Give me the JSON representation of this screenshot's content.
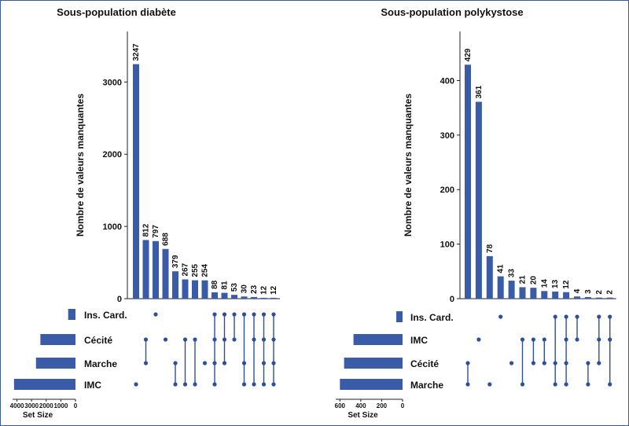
{
  "colors": {
    "bar": "#3a5ca8",
    "dot": "#2f4f9a",
    "axis": "#222222"
  },
  "chart_data": [
    {
      "type": "bar",
      "subtype": "upset",
      "title": "Sous-population diabète",
      "ylabel": "Nombre de valeurs manquantes",
      "ylim": [
        0,
        3700
      ],
      "yticks": [
        0,
        1000,
        2000,
        3000
      ],
      "ytick_labels": [
        "0",
        "1000",
        "2000",
        "3000"
      ],
      "values": [
        3247,
        812,
        797,
        688,
        379,
        267,
        255,
        254,
        88,
        81,
        53,
        30,
        23,
        12,
        12
      ],
      "value_labels": [
        "3247",
        "812",
        "797",
        "688",
        "379",
        "267",
        "255",
        "254",
        "88",
        "81",
        "53",
        "30",
        "23",
        "12",
        "12"
      ],
      "sets": [
        "Ins. Card.",
        "Cécité",
        "Marche",
        "IMC"
      ],
      "set_sizes": [
        500,
        2400,
        2700,
        4200
      ],
      "set_size_label": "Set Size",
      "set_size_max": 4300,
      "set_size_ticks": [
        4000,
        3000,
        2000,
        1000,
        0
      ],
      "set_size_tick_labels": [
        "4000",
        "3000",
        "2000",
        "1000",
        "0"
      ],
      "combinations": [
        [
          3
        ],
        [
          1,
          2
        ],
        [
          0
        ],
        [
          1
        ],
        [
          2,
          3
        ],
        [
          1,
          3
        ],
        [
          1,
          3
        ],
        [
          2
        ],
        [
          0,
          1,
          2,
          3
        ],
        [
          0,
          1,
          2
        ],
        [
          0,
          1
        ],
        [
          0,
          2,
          3
        ],
        [
          0,
          1,
          3
        ],
        [
          0,
          1,
          2,
          3
        ],
        [
          0,
          1,
          2,
          3
        ]
      ]
    },
    {
      "type": "bar",
      "subtype": "upset",
      "title": "Sous-population polykystose",
      "ylabel": "Nombre de valeurs manquantes",
      "ylim": [
        0,
        490
      ],
      "yticks": [
        0,
        100,
        200,
        300,
        400
      ],
      "ytick_labels": [
        "0",
        "100",
        "200",
        "300",
        "400"
      ],
      "values": [
        429,
        361,
        78,
        41,
        33,
        21,
        20,
        14,
        13,
        12,
        4,
        3,
        2,
        2
      ],
      "value_labels": [
        "429",
        "361",
        "78",
        "41",
        "33",
        "21",
        "20",
        "14",
        "13",
        "12",
        "4",
        "3",
        "2",
        "2"
      ],
      "sets": [
        "Ins. Card.",
        "IMC",
        "Cécité",
        "Marche"
      ],
      "set_sizes": [
        60,
        470,
        560,
        600
      ],
      "set_size_label": "Set Size",
      "set_size_max": 640,
      "set_size_ticks": [
        600,
        400,
        200,
        0
      ],
      "set_size_tick_labels": [
        "600",
        "400",
        "200",
        "0"
      ],
      "combinations": [
        [
          2,
          3
        ],
        [
          1
        ],
        [
          3
        ],
        [
          0
        ],
        [
          2
        ],
        [
          1,
          3
        ],
        [
          1,
          2
        ],
        [
          1,
          2
        ],
        [
          0,
          2,
          3
        ],
        [
          0,
          1,
          2,
          3
        ],
        [
          0,
          1
        ],
        [
          2,
          3
        ],
        [
          0,
          1,
          2
        ],
        [
          0,
          1,
          3
        ]
      ]
    }
  ]
}
